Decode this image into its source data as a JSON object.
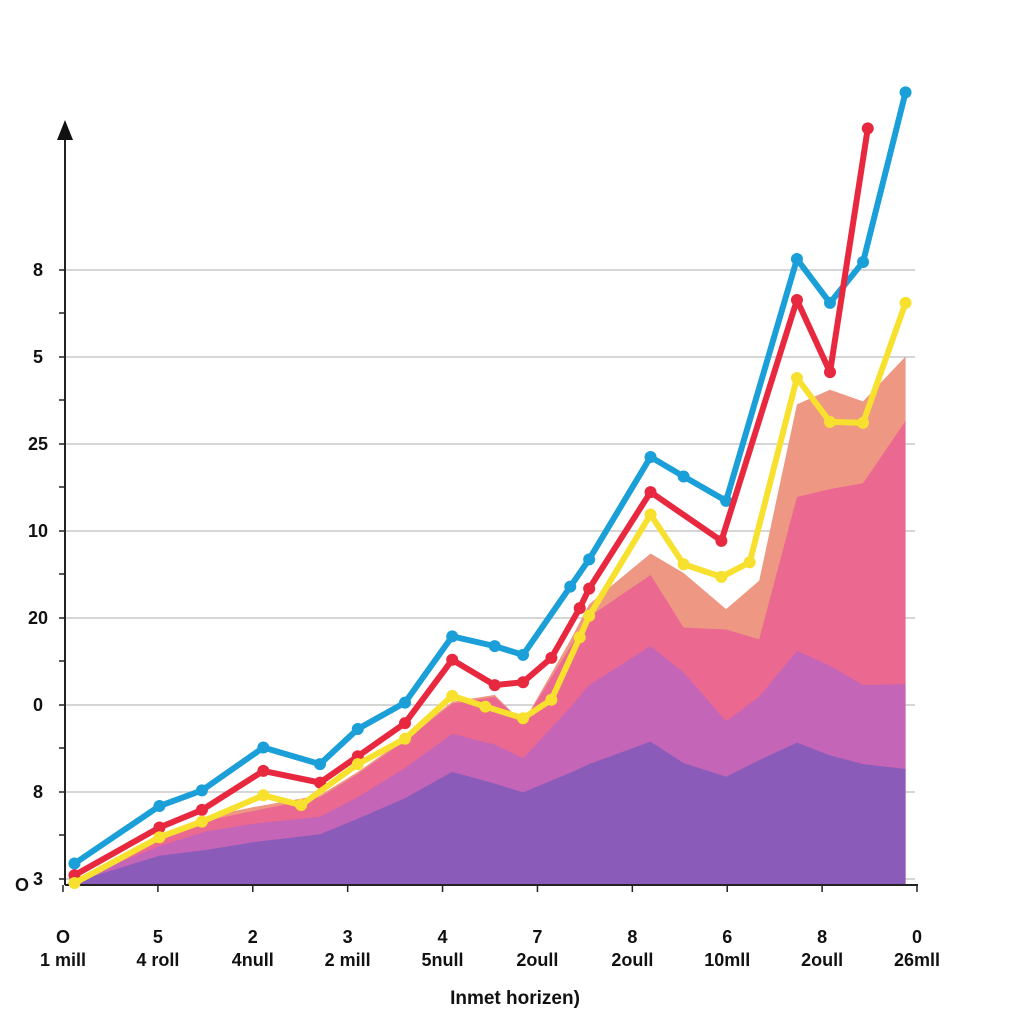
{
  "chart_data": {
    "type": "line",
    "xlabel": "Inmet horizen)",
    "ylabel": "",
    "title": "",
    "grid": true,
    "legend": "none",
    "x_tick_labels": [
      {
        "top": "O",
        "bottom": "1 mill"
      },
      {
        "top": "5",
        "bottom": "4 roll"
      },
      {
        "top": "2",
        "bottom": "4null"
      },
      {
        "top": "3",
        "bottom": "2 mill"
      },
      {
        "top": "4",
        "bottom": "5null"
      },
      {
        "top": "7",
        "bottom": "2oull"
      },
      {
        "top": "8",
        "bottom": "2oull"
      },
      {
        "top": "6",
        "bottom": "10mll"
      },
      {
        "top": "8",
        "bottom": "2oull"
      },
      {
        "top": "0",
        "bottom": "26mll"
      }
    ],
    "y_tick_labels": [
      "O",
      "3",
      "8",
      "0",
      "20",
      "10",
      "25",
      "5",
      "8"
    ],
    "ylim": [
      0,
      8
    ],
    "xlim": [
      0,
      9
    ],
    "line_series": [
      {
        "color": "#1a9fd9",
        "x": [
          0.1,
          1.0,
          1.45,
          2.1,
          2.7,
          3.1,
          3.6,
          4.1,
          4.55,
          4.85,
          5.35,
          5.55,
          6.2,
          6.55,
          7.0,
          7.75,
          8.1,
          8.45,
          8.9
        ],
        "y": [
          0.22,
          0.81,
          0.97,
          1.41,
          1.24,
          1.6,
          1.87,
          2.55,
          2.45,
          2.36,
          3.06,
          3.34,
          4.39,
          4.19,
          3.94,
          6.42,
          5.97,
          6.39,
          8.13
        ]
      },
      {
        "color": "#e8283f",
        "x": [
          0.1,
          1.0,
          1.45,
          2.1,
          2.7,
          3.1,
          3.6,
          4.1,
          4.55,
          4.85,
          5.15,
          5.45,
          5.55,
          6.2,
          6.95,
          7.75,
          8.1,
          8.5
        ],
        "y": [
          0.1,
          0.59,
          0.77,
          1.17,
          1.05,
          1.32,
          1.66,
          2.31,
          2.05,
          2.08,
          2.33,
          2.84,
          3.04,
          4.03,
          3.53,
          6.0,
          5.26,
          7.76
        ]
      },
      {
        "color": "#f7e12e",
        "x": [
          0.1,
          1.0,
          1.45,
          2.1,
          2.5,
          3.1,
          3.6,
          4.1,
          4.45,
          4.85,
          5.15,
          5.45,
          5.55,
          6.2,
          6.55,
          6.95,
          7.25,
          7.75,
          8.1,
          8.45,
          8.9
        ],
        "y": [
          0.02,
          0.49,
          0.65,
          0.92,
          0.82,
          1.24,
          1.5,
          1.94,
          1.83,
          1.71,
          1.9,
          2.54,
          2.76,
          3.8,
          3.29,
          3.16,
          3.31,
          5.2,
          4.75,
          4.74,
          5.97
        ]
      }
    ],
    "area_series": [
      {
        "color": "#ee9783",
        "x": [
          0.0,
          1.0,
          1.5,
          2.0,
          2.7,
          3.1,
          3.6,
          4.1,
          4.55,
          4.85,
          5.35,
          5.55,
          6.2,
          6.55,
          7.0,
          7.35,
          7.75,
          8.1,
          8.45,
          8.9
        ],
        "y": [
          0.0,
          0.52,
          0.7,
          0.8,
          0.92,
          1.16,
          1.5,
          1.88,
          1.95,
          1.66,
          2.51,
          2.88,
          3.4,
          3.2,
          2.83,
          3.12,
          4.93,
          5.08,
          4.96,
          5.42
        ]
      },
      {
        "color": "#eb6890",
        "x": [
          0.0,
          1.0,
          1.5,
          2.0,
          2.7,
          3.1,
          3.6,
          4.1,
          4.55,
          4.85,
          5.35,
          5.55,
          6.2,
          6.55,
          7.0,
          7.35,
          7.75,
          8.1,
          8.45,
          8.9
        ],
        "y": [
          0.0,
          0.48,
          0.66,
          0.76,
          0.9,
          1.14,
          1.48,
          1.86,
          1.93,
          1.66,
          2.44,
          2.75,
          3.18,
          2.64,
          2.62,
          2.52,
          3.98,
          4.06,
          4.12,
          4.76
        ]
      },
      {
        "color": "#c465b8",
        "x": [
          0.0,
          1.0,
          1.5,
          2.0,
          2.7,
          3.1,
          3.6,
          4.1,
          4.55,
          4.85,
          5.35,
          5.55,
          6.2,
          6.55,
          7.0,
          7.35,
          7.75,
          8.1,
          8.45,
          8.9
        ],
        "y": [
          0.0,
          0.4,
          0.55,
          0.63,
          0.7,
          0.9,
          1.2,
          1.55,
          1.44,
          1.3,
          1.82,
          2.05,
          2.45,
          2.18,
          1.68,
          1.93,
          2.4,
          2.25,
          2.05,
          2.06
        ]
      },
      {
        "color": "#8a5bb8",
        "x": [
          0.0,
          1.0,
          1.5,
          2.0,
          2.7,
          3.1,
          3.6,
          4.1,
          4.55,
          4.85,
          5.35,
          5.55,
          6.2,
          6.55,
          7.0,
          7.35,
          7.75,
          8.1,
          8.45,
          8.9
        ],
        "y": [
          0.0,
          0.3,
          0.36,
          0.44,
          0.52,
          0.68,
          0.89,
          1.16,
          1.04,
          0.95,
          1.15,
          1.24,
          1.47,
          1.25,
          1.11,
          1.28,
          1.46,
          1.33,
          1.24,
          1.19
        ]
      }
    ]
  }
}
